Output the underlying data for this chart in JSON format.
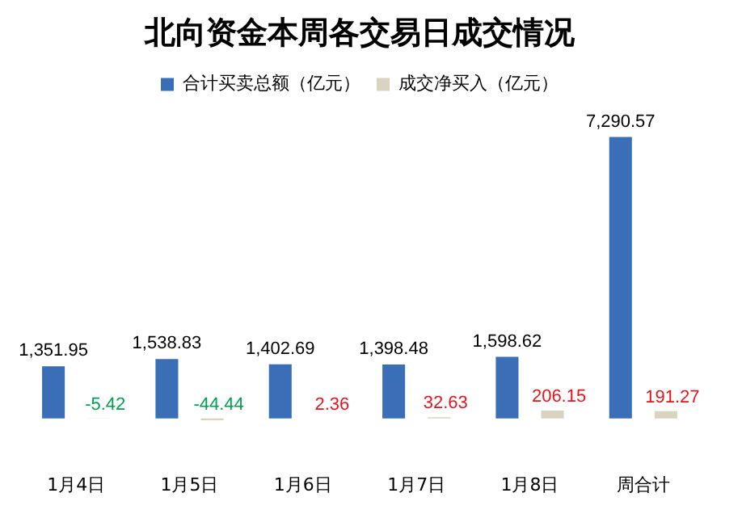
{
  "chart_data": {
    "type": "bar",
    "title": "北向资金本周各交易日成交情况",
    "categories": [
      "1月4日",
      "1月5日",
      "1月6日",
      "1月7日",
      "1月8日",
      "周合计"
    ],
    "legend": "top",
    "series": [
      {
        "name": "合计买卖总额（亿元）",
        "color": "#3a6fb8",
        "values": [
          1351.95,
          1538.83,
          1402.69,
          1398.48,
          1598.62,
          7290.57
        ],
        "value_labels": [
          "1,351.95",
          "1,538.83",
          "1,402.69",
          "1,398.48",
          "1,598.62",
          "7,290.57"
        ]
      },
      {
        "name": "成交净买入（亿元）",
        "color": "#d8d4bf",
        "values": [
          -5.42,
          -44.44,
          2.36,
          32.63,
          206.15,
          191.27
        ],
        "value_labels": [
          "-5.42",
          "-44.44",
          "2.36",
          "32.63",
          "206.15",
          "191.27"
        ]
      }
    ]
  }
}
